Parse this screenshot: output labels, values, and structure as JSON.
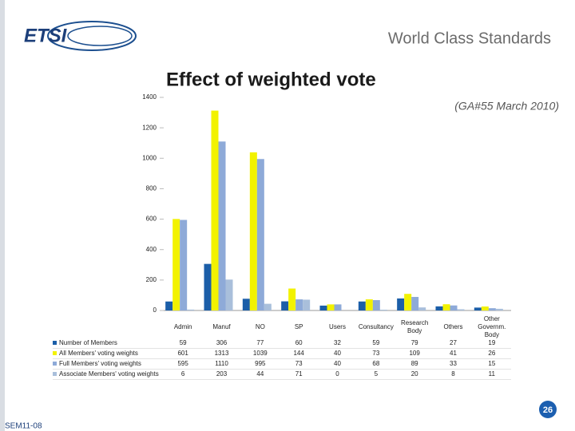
{
  "header": {
    "logo": "ETSI",
    "slogan": "World Class Standards"
  },
  "footer": {
    "page": "26",
    "code": "SEM11-08"
  },
  "chart_data": {
    "type": "bar",
    "title": "Effect of weighted vote",
    "subtitle": "(GA#55 March 2010)",
    "categories": [
      "Admin",
      "Manuf",
      "NO",
      "SP",
      "Users",
      "Consultancy",
      "Research Body",
      "Others",
      "Other Governm. Body"
    ],
    "series": [
      {
        "name": "Number of Members",
        "color": "#1b5ea8",
        "values": [
          59,
          306,
          77,
          60,
          32,
          59,
          79,
          27,
          19
        ]
      },
      {
        "name": "All Members' voting weights",
        "color": "#f2f200",
        "values": [
          601,
          1313,
          1039,
          144,
          40,
          73,
          109,
          41,
          26
        ]
      },
      {
        "name": "Full Members' voting weights",
        "color": "#8eaad8",
        "values": [
          595,
          1110,
          995,
          73,
          40,
          68,
          89,
          33,
          15
        ]
      },
      {
        "name": "Associate Members' voting weights",
        "color": "#a9bfdb",
        "values": [
          6,
          203,
          44,
          71,
          0,
          5,
          20,
          8,
          11
        ]
      }
    ],
    "ylim": [
      0,
      1400
    ],
    "yticks": [
      0,
      200,
      400,
      600,
      800,
      1000,
      1200,
      1400
    ],
    "grid": false
  }
}
